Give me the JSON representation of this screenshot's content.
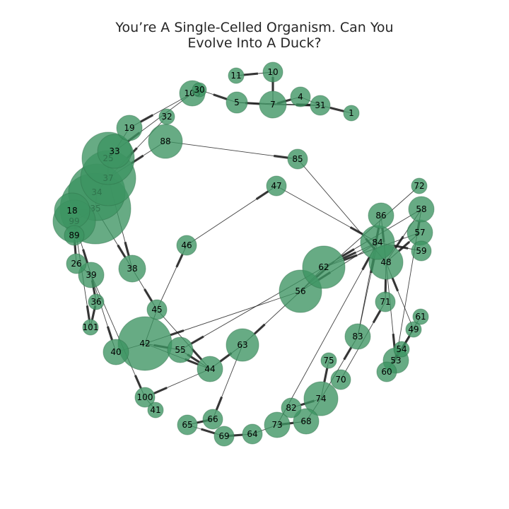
{
  "title_lines": [
    "You’re A Single-Celled Organism. Can You",
    "Evolve Into A Duck?"
  ],
  "colors": {
    "node_fill": "#3c9461",
    "edge": "#222222",
    "background": "#ffffff"
  },
  "nodes": [
    {
      "id": "1",
      "size": 1
    },
    {
      "id": "4",
      "size": 2
    },
    {
      "id": "5",
      "size": 2
    },
    {
      "id": "7",
      "size": 3
    },
    {
      "id": "10",
      "size": 2
    },
    {
      "id": "11",
      "size": 1
    },
    {
      "id": "18",
      "size": 5
    },
    {
      "id": "19",
      "size": 3
    },
    {
      "id": "25",
      "size": 6
    },
    {
      "id": "26",
      "size": 2
    },
    {
      "id": "30",
      "size": 1
    },
    {
      "id": "31",
      "size": 2
    },
    {
      "id": "32",
      "size": 1
    },
    {
      "id": "33",
      "size": 4
    },
    {
      "id": "34",
      "size": 12
    },
    {
      "id": "35",
      "size": 16
    },
    {
      "id": "36",
      "size": 1
    },
    {
      "id": "37",
      "size": 10
    },
    {
      "id": "38",
      "size": 3
    },
    {
      "id": "39",
      "size": 3
    },
    {
      "id": "40",
      "size": 3
    },
    {
      "id": "41",
      "size": 1
    },
    {
      "id": "42",
      "size": 14
    },
    {
      "id": "44",
      "size": 3
    },
    {
      "id": "45",
      "size": 2
    },
    {
      "id": "46",
      "size": 2
    },
    {
      "id": "47",
      "size": 2
    },
    {
      "id": "48",
      "size": 5
    },
    {
      "id": "49",
      "size": 1
    },
    {
      "id": "53",
      "size": 3
    },
    {
      "id": "54",
      "size": 1
    },
    {
      "id": "55",
      "size": 3
    },
    {
      "id": "56",
      "size": 10
    },
    {
      "id": "57",
      "size": 3
    },
    {
      "id": "58",
      "size": 3
    },
    {
      "id": "59",
      "size": 2
    },
    {
      "id": "60",
      "size": 2
    },
    {
      "id": "61",
      "size": 1
    },
    {
      "id": "62",
      "size": 10
    },
    {
      "id": "63",
      "size": 5
    },
    {
      "id": "64",
      "size": 2
    },
    {
      "id": "65",
      "size": 2
    },
    {
      "id": "66",
      "size": 2
    },
    {
      "id": "68",
      "size": 3
    },
    {
      "id": "69",
      "size": 2
    },
    {
      "id": "70",
      "size": 2
    },
    {
      "id": "71",
      "size": 2
    },
    {
      "id": "72",
      "size": 1
    },
    {
      "id": "73",
      "size": 3
    },
    {
      "id": "74",
      "size": 5
    },
    {
      "id": "75",
      "size": 1
    },
    {
      "id": "82",
      "size": 2
    },
    {
      "id": "83",
      "size": 3
    },
    {
      "id": "84",
      "size": 5
    },
    {
      "id": "85",
      "size": 2
    },
    {
      "id": "86",
      "size": 3
    },
    {
      "id": "88",
      "size": 5
    },
    {
      "id": "89",
      "size": 2
    },
    {
      "id": "99",
      "size": 7
    },
    {
      "id": "100",
      "size": 2
    },
    {
      "id": "101",
      "size": 1
    },
    {
      "id": "103",
      "size": 3
    }
  ],
  "edges": [
    [
      "10",
      "11"
    ],
    [
      "10",
      "7"
    ],
    [
      "30",
      "5"
    ],
    [
      "5",
      "7"
    ],
    [
      "7",
      "4"
    ],
    [
      "4",
      "31"
    ],
    [
      "31",
      "1"
    ],
    [
      "5",
      "31"
    ],
    [
      "7",
      "31"
    ],
    [
      "103",
      "19"
    ],
    [
      "103",
      "33"
    ],
    [
      "103",
      "30"
    ],
    [
      "32",
      "37"
    ],
    [
      "19",
      "33"
    ],
    [
      "33",
      "25"
    ],
    [
      "25",
      "37"
    ],
    [
      "37",
      "34"
    ],
    [
      "34",
      "35"
    ],
    [
      "35",
      "18"
    ],
    [
      "35",
      "99"
    ],
    [
      "99",
      "89"
    ],
    [
      "89",
      "26"
    ],
    [
      "26",
      "39"
    ],
    [
      "99",
      "39"
    ],
    [
      "39",
      "36"
    ],
    [
      "36",
      "101"
    ],
    [
      "99",
      "101"
    ],
    [
      "35",
      "38"
    ],
    [
      "37",
      "38"
    ],
    [
      "38",
      "45"
    ],
    [
      "39",
      "40"
    ],
    [
      "40",
      "42"
    ],
    [
      "42",
      "55"
    ],
    [
      "55",
      "44"
    ],
    [
      "42",
      "44"
    ],
    [
      "39",
      "100"
    ],
    [
      "100",
      "41"
    ],
    [
      "44",
      "100"
    ],
    [
      "45",
      "42"
    ],
    [
      "45",
      "46"
    ],
    [
      "46",
      "47"
    ],
    [
      "47",
      "84"
    ],
    [
      "88",
      "85"
    ],
    [
      "88",
      "37"
    ],
    [
      "85",
      "48"
    ],
    [
      "84",
      "62"
    ],
    [
      "84",
      "56"
    ],
    [
      "62",
      "56"
    ],
    [
      "56",
      "42"
    ],
    [
      "62",
      "55"
    ],
    [
      "56",
      "63"
    ],
    [
      "63",
      "44"
    ],
    [
      "63",
      "66"
    ],
    [
      "66",
      "65"
    ],
    [
      "65",
      "69"
    ],
    [
      "69",
      "64"
    ],
    [
      "64",
      "73"
    ],
    [
      "73",
      "68"
    ],
    [
      "68",
      "74"
    ],
    [
      "74",
      "82"
    ],
    [
      "74",
      "83"
    ],
    [
      "74",
      "75"
    ],
    [
      "83",
      "84"
    ],
    [
      "83",
      "86"
    ],
    [
      "70",
      "71"
    ],
    [
      "71",
      "48"
    ],
    [
      "48",
      "86"
    ],
    [
      "48",
      "53"
    ],
    [
      "53",
      "54"
    ],
    [
      "54",
      "49"
    ],
    [
      "49",
      "48"
    ],
    [
      "58",
      "48"
    ],
    [
      "57",
      "48"
    ],
    [
      "57",
      "62"
    ],
    [
      "58",
      "62"
    ],
    [
      "72",
      "56"
    ],
    [
      "59",
      "84"
    ],
    [
      "61",
      "60"
    ],
    [
      "53",
      "58"
    ],
    [
      "45",
      "44"
    ],
    [
      "73",
      "84"
    ]
  ]
}
